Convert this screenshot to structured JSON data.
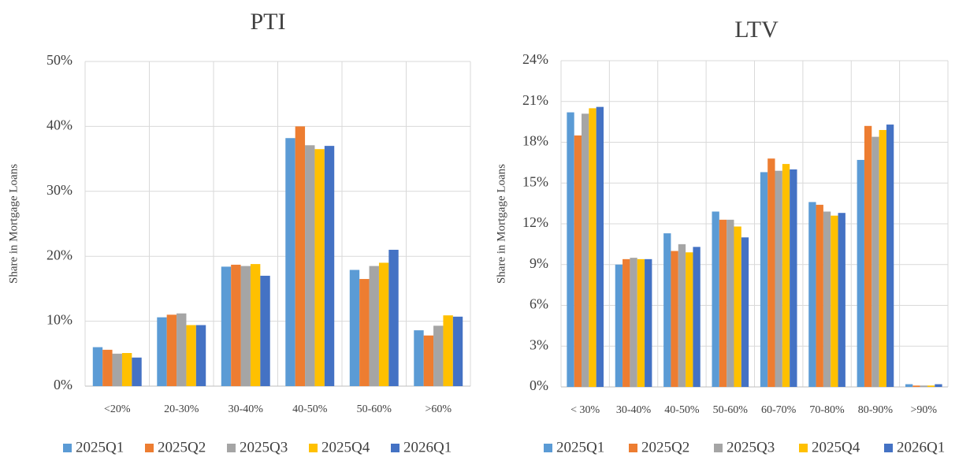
{
  "chart_data": [
    {
      "type": "bar",
      "title": "PTI",
      "y_label": "Share in Mortgage Loans",
      "categories": [
        "<20%",
        "20-30%",
        "30-40%",
        "40-50%",
        "50-60%",
        ">60%"
      ],
      "series": [
        {
          "name": "2025Q1",
          "color": "#5b9bd5",
          "values": [
            6.0,
            10.6,
            18.4,
            38.2,
            17.9,
            8.6
          ]
        },
        {
          "name": "2025Q2",
          "color": "#ed7d31",
          "values": [
            5.6,
            11.0,
            18.7,
            40.0,
            16.5,
            7.8
          ]
        },
        {
          "name": "2025Q3",
          "color": "#a5a5a5",
          "values": [
            5.0,
            11.2,
            18.5,
            37.1,
            18.5,
            9.3
          ]
        },
        {
          "name": "2025Q4",
          "color": "#ffc000",
          "values": [
            5.1,
            9.4,
            18.8,
            36.5,
            19.0,
            10.9
          ]
        },
        {
          "name": "2026Q1",
          "color": "#4472c4",
          "values": [
            4.4,
            9.4,
            17.0,
            37.0,
            21.0,
            10.7
          ]
        }
      ],
      "ylim": [
        0,
        50
      ],
      "yticks": [
        {
          "value": 0,
          "label": "0%"
        },
        {
          "value": 10,
          "label": "10%"
        },
        {
          "value": 20,
          "label": "20%"
        },
        {
          "value": 30,
          "label": "30%"
        },
        {
          "value": 40,
          "label": "40%"
        },
        {
          "value": 50,
          "label": "50%"
        }
      ],
      "grid": true,
      "legend": "bottom"
    },
    {
      "type": "bar",
      "title": "LTV",
      "y_label": "Share in Mortgage Loans",
      "categories": [
        "< 30%",
        "30-40%",
        "40-50%",
        "50-60%",
        "60-70%",
        "70-80%",
        "80-90%",
        ">90%"
      ],
      "series": [
        {
          "name": "2025Q1",
          "color": "#5b9bd5",
          "values": [
            20.2,
            9.0,
            11.3,
            12.9,
            15.8,
            13.6,
            16.7,
            0.2
          ]
        },
        {
          "name": "2025Q2",
          "color": "#ed7d31",
          "values": [
            18.5,
            9.4,
            10.0,
            12.3,
            16.8,
            13.4,
            19.2,
            0.1
          ]
        },
        {
          "name": "2025Q3",
          "color": "#a5a5a5",
          "values": [
            20.1,
            9.5,
            10.5,
            12.3,
            15.9,
            12.9,
            18.4,
            0.1
          ]
        },
        {
          "name": "2025Q4",
          "color": "#ffc000",
          "values": [
            20.5,
            9.4,
            9.9,
            11.8,
            16.4,
            12.6,
            18.9,
            0.1
          ]
        },
        {
          "name": "2026Q1",
          "color": "#4472c4",
          "values": [
            20.6,
            9.4,
            10.3,
            11.0,
            16.0,
            12.8,
            19.3,
            0.2
          ]
        }
      ],
      "ylim": [
        0,
        24
      ],
      "yticks": [
        {
          "value": 0,
          "label": "0%"
        },
        {
          "value": 3,
          "label": "3%"
        },
        {
          "value": 6,
          "label": "6%"
        },
        {
          "value": 9,
          "label": "9%"
        },
        {
          "value": 12,
          "label": "12%"
        },
        {
          "value": 15,
          "label": "15%"
        },
        {
          "value": 18,
          "label": "18%"
        },
        {
          "value": 21,
          "label": "21%"
        },
        {
          "value": 24,
          "label": "24%"
        }
      ],
      "grid": true,
      "legend": "bottom"
    }
  ]
}
